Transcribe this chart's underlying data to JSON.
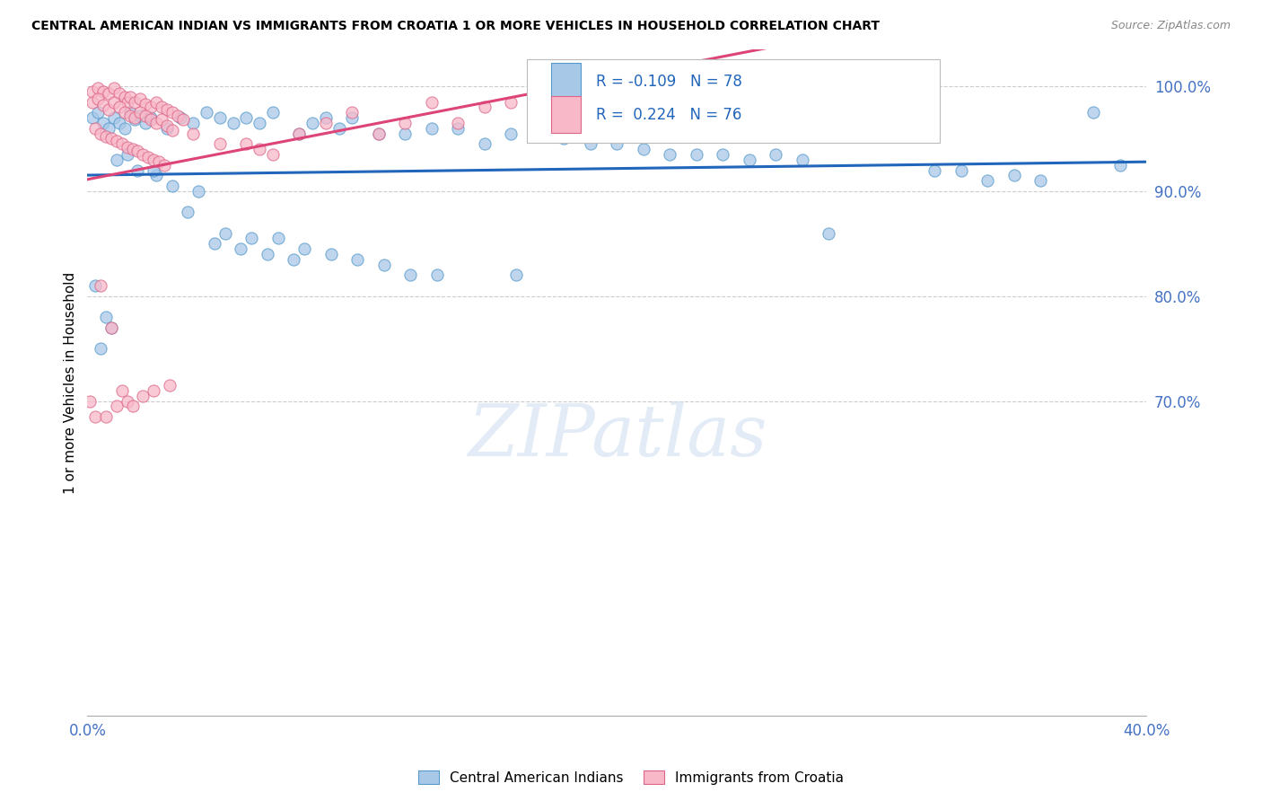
{
  "title": "CENTRAL AMERICAN INDIAN VS IMMIGRANTS FROM CROATIA 1 OR MORE VEHICLES IN HOUSEHOLD CORRELATION CHART",
  "source": "Source: ZipAtlas.com",
  "ylabel": "1 or more Vehicles in Household",
  "xmin": 0.0,
  "xmax": 0.4,
  "ymin": 0.4,
  "ymax": 1.035,
  "grid_color": "#cccccc",
  "blue_color": "#a8c8e8",
  "pink_color": "#f8b8c8",
  "blue_edge_color": "#5599cc",
  "pink_edge_color": "#dd6688",
  "blue_line_color": "#2266bb",
  "pink_line_color": "#dd4477",
  "legend_label1": "Central American Indians",
  "legend_label2": "Immigrants from Croatia",
  "watermark": "ZIPatlas",
  "blue_scatter_x": [
    0.002,
    0.004,
    0.006,
    0.008,
    0.01,
    0.012,
    0.014,
    0.016,
    0.018,
    0.02,
    0.022,
    0.024,
    0.03,
    0.035,
    0.04,
    0.045,
    0.05,
    0.055,
    0.06,
    0.065,
    0.07,
    0.08,
    0.085,
    0.09,
    0.095,
    0.1,
    0.11,
    0.12,
    0.13,
    0.14,
    0.15,
    0.16,
    0.17,
    0.18,
    0.19,
    0.2,
    0.21,
    0.22,
    0.23,
    0.24,
    0.25,
    0.26,
    0.27,
    0.28,
    0.3,
    0.32,
    0.33,
    0.34,
    0.35,
    0.36,
    0.38,
    0.39,
    0.003,
    0.007,
    0.011,
    0.015,
    0.019,
    0.026,
    0.032,
    0.042,
    0.052,
    0.062,
    0.072,
    0.082,
    0.092,
    0.102,
    0.112,
    0.122,
    0.132,
    0.162,
    0.005,
    0.009,
    0.025,
    0.038,
    0.048,
    0.058,
    0.068,
    0.078
  ],
  "blue_scatter_y": [
    0.97,
    0.975,
    0.965,
    0.96,
    0.97,
    0.965,
    0.96,
    0.975,
    0.968,
    0.972,
    0.965,
    0.97,
    0.96,
    0.97,
    0.965,
    0.975,
    0.97,
    0.965,
    0.97,
    0.965,
    0.975,
    0.955,
    0.965,
    0.97,
    0.96,
    0.97,
    0.955,
    0.955,
    0.96,
    0.96,
    0.945,
    0.955,
    0.955,
    0.95,
    0.945,
    0.945,
    0.94,
    0.935,
    0.935,
    0.935,
    0.93,
    0.935,
    0.93,
    0.86,
    0.955,
    0.92,
    0.92,
    0.91,
    0.915,
    0.91,
    0.975,
    0.925,
    0.81,
    0.78,
    0.93,
    0.935,
    0.92,
    0.915,
    0.905,
    0.9,
    0.86,
    0.855,
    0.855,
    0.845,
    0.84,
    0.835,
    0.83,
    0.82,
    0.82,
    0.82,
    0.75,
    0.77,
    0.92,
    0.88,
    0.85,
    0.845,
    0.84,
    0.835
  ],
  "pink_scatter_x": [
    0.002,
    0.004,
    0.006,
    0.008,
    0.01,
    0.012,
    0.014,
    0.015,
    0.016,
    0.018,
    0.02,
    0.022,
    0.024,
    0.026,
    0.028,
    0.03,
    0.032,
    0.034,
    0.036,
    0.002,
    0.004,
    0.006,
    0.008,
    0.01,
    0.012,
    0.014,
    0.016,
    0.018,
    0.02,
    0.022,
    0.024,
    0.026,
    0.028,
    0.03,
    0.032,
    0.003,
    0.005,
    0.007,
    0.009,
    0.011,
    0.013,
    0.015,
    0.017,
    0.019,
    0.021,
    0.023,
    0.025,
    0.027,
    0.029,
    0.04,
    0.05,
    0.06,
    0.065,
    0.07,
    0.08,
    0.09,
    0.1,
    0.11,
    0.12,
    0.13,
    0.14,
    0.15,
    0.16,
    0.17,
    0.005,
    0.009,
    0.013,
    0.001,
    0.003,
    0.007,
    0.011,
    0.015,
    0.017,
    0.021,
    0.025,
    0.031
  ],
  "pink_scatter_y": [
    0.995,
    0.998,
    0.995,
    0.993,
    0.998,
    0.993,
    0.99,
    0.985,
    0.99,
    0.985,
    0.988,
    0.983,
    0.98,
    0.985,
    0.98,
    0.978,
    0.975,
    0.972,
    0.968,
    0.985,
    0.988,
    0.982,
    0.978,
    0.985,
    0.98,
    0.975,
    0.972,
    0.97,
    0.975,
    0.972,
    0.968,
    0.965,
    0.968,
    0.962,
    0.958,
    0.96,
    0.955,
    0.952,
    0.95,
    0.948,
    0.945,
    0.942,
    0.94,
    0.938,
    0.935,
    0.932,
    0.93,
    0.928,
    0.925,
    0.955,
    0.945,
    0.945,
    0.94,
    0.935,
    0.955,
    0.965,
    0.975,
    0.955,
    0.965,
    0.985,
    0.965,
    0.98,
    0.985,
    0.97,
    0.81,
    0.77,
    0.71,
    0.7,
    0.685,
    0.685,
    0.695,
    0.7,
    0.695,
    0.705,
    0.71,
    0.715
  ]
}
